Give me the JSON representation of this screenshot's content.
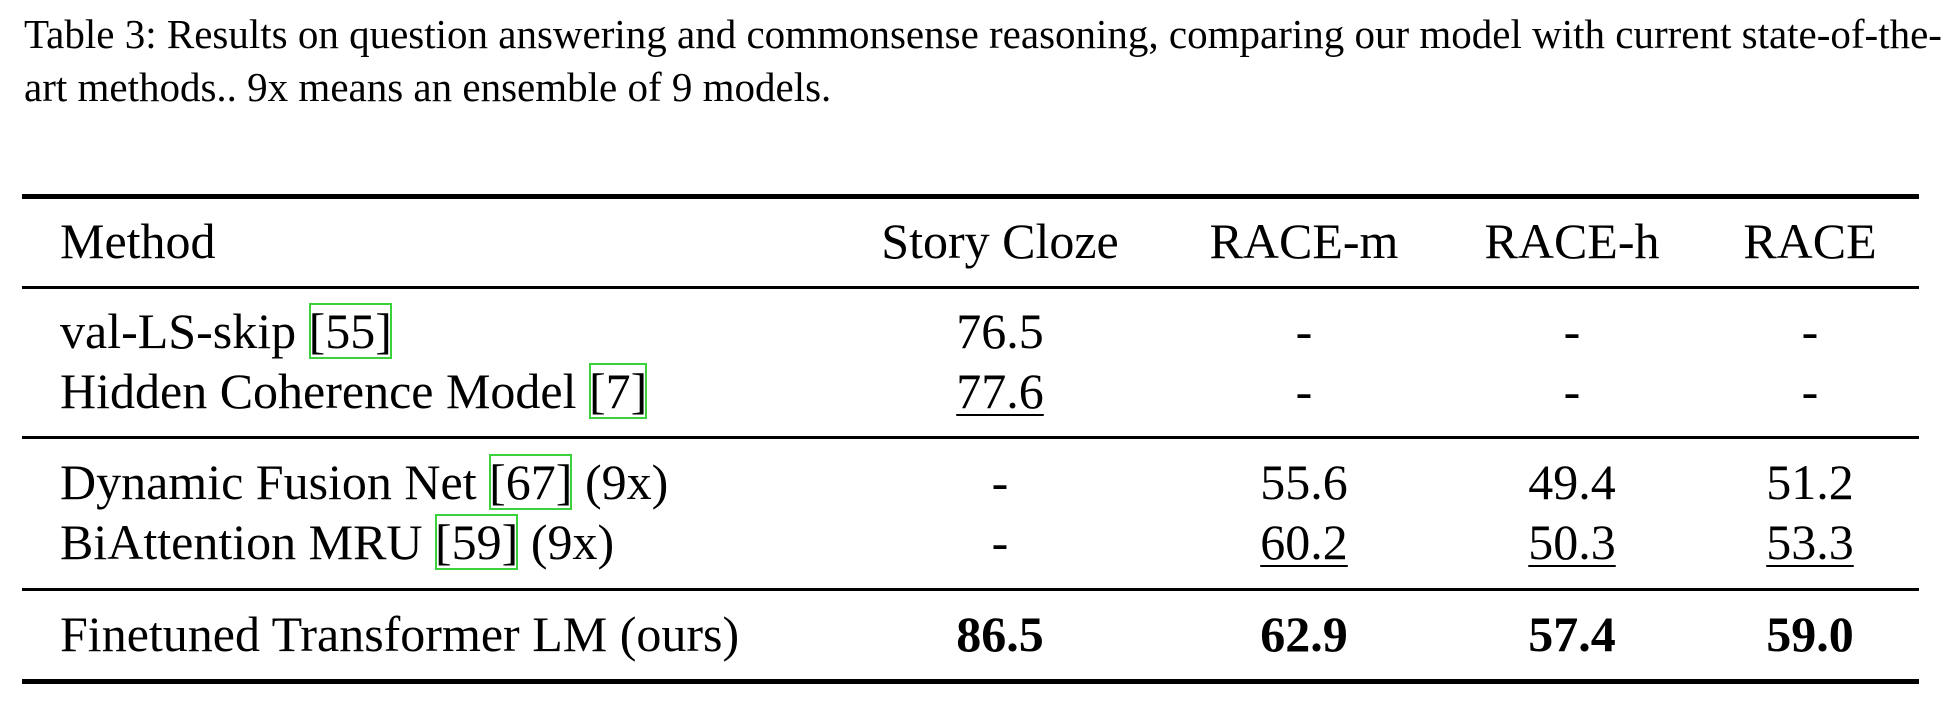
{
  "caption": "Table 3: Results on question answering and commonsense reasoning, comparing our model with current state-of-the-art methods.. 9x means an ensemble of 9 models.",
  "table": {
    "header": [
      "Method",
      "Story Cloze",
      "RACE-m",
      "RACE-h",
      "RACE"
    ],
    "groups": [
      [
        {
          "method": "val-LS-skip",
          "ref": "[55]",
          "values": [
            {
              "text": "76.5"
            },
            {
              "text": "-"
            },
            {
              "text": "-"
            },
            {
              "text": "-"
            }
          ]
        },
        {
          "method": "Hidden Coherence Model",
          "ref": "[7]",
          "values": [
            {
              "text": "77.6",
              "style": "underline"
            },
            {
              "text": "-"
            },
            {
              "text": "-"
            },
            {
              "text": "-"
            }
          ]
        }
      ],
      [
        {
          "method": "Dynamic Fusion Net",
          "ref": "[67]",
          "suffix": "(9x)",
          "values": [
            {
              "text": "-"
            },
            {
              "text": "55.6"
            },
            {
              "text": "49.4"
            },
            {
              "text": "51.2"
            }
          ]
        },
        {
          "method": "BiAttention MRU",
          "ref": "[59]",
          "suffix": "(9x)",
          "values": [
            {
              "text": "-"
            },
            {
              "text": "60.2",
              "style": "underline"
            },
            {
              "text": "50.3",
              "style": "underline"
            },
            {
              "text": "53.3",
              "style": "underline"
            }
          ]
        }
      ],
      [
        {
          "method": "Finetuned Transformer LM (ours)",
          "values": [
            {
              "text": "86.5",
              "style": "bold"
            },
            {
              "text": "62.9",
              "style": "bold"
            },
            {
              "text": "57.4",
              "style": "bold"
            },
            {
              "text": "59.0",
              "style": "bold"
            }
          ]
        }
      ]
    ]
  }
}
